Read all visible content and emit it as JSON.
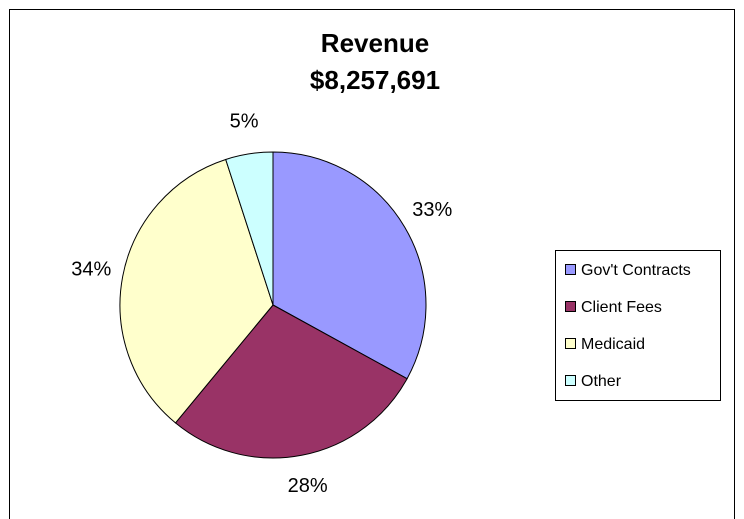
{
  "chart_data": {
    "type": "pie",
    "title": "Revenue",
    "subtitle": "$8,257,691",
    "categories": [
      "Gov't Contracts",
      "Client Fees",
      "Medicaid",
      "Other"
    ],
    "values": [
      33,
      28,
      34,
      5
    ],
    "value_labels": [
      "33%",
      "28%",
      "34%",
      "5%"
    ],
    "colors": [
      "#9999ff",
      "#993366",
      "#ffffcc",
      "#ccffff"
    ],
    "legend": "right"
  }
}
